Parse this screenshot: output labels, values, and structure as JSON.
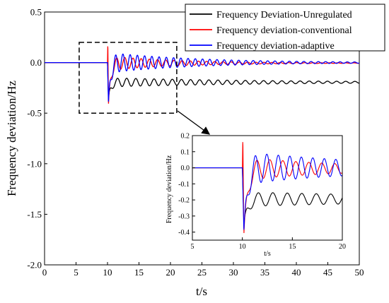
{
  "chart_data": [
    {
      "id": "main",
      "type": "line",
      "title": "",
      "xlabel": "t/s",
      "ylabel": "Frequency deviation/Hz",
      "xlim": [
        0,
        50
      ],
      "ylim": [
        -2.0,
        0.5
      ],
      "xticks": [
        0,
        5,
        10,
        15,
        20,
        25,
        30,
        35,
        40,
        45,
        50
      ],
      "yticks": [
        -2.0,
        -1.5,
        -1.0,
        -0.5,
        0.0,
        0.5
      ],
      "xtick_labels": [
        "0",
        "5",
        "10",
        "15",
        "20",
        "25",
        "30",
        "35",
        "40",
        "45",
        "50"
      ],
      "ytick_labels": [
        "-2.0",
        "-1.5",
        "-1.0",
        "-0.5",
        "0.0",
        "0.5"
      ],
      "grid": false,
      "legend_position": "top-right",
      "series": [
        {
          "name": "Frequency Deviation-Unregulated",
          "color": "#000000",
          "step_time": 10,
          "dip": -0.35,
          "steady": -0.195,
          "osc_amp": 0.045,
          "period": 1.45,
          "decay": 0.04
        },
        {
          "name": "Frequency deviation-conventional",
          "color": "#ff0000",
          "step_time": 10,
          "spike": 0.2,
          "dip": -0.42,
          "steady": -0.005,
          "osc_amp": 0.07,
          "period": 1.3,
          "decay": 0.09
        },
        {
          "name": "Frequency deviation-adaptive",
          "color": "#0000ff",
          "step_time": 10,
          "dip": -0.4,
          "steady": 0.0,
          "osc_amp": 0.1,
          "period": 1.15,
          "decay": 0.07
        }
      ],
      "zoom_box": {
        "x": [
          5.5,
          21
        ],
        "y": [
          -0.5,
          0.2
        ]
      }
    },
    {
      "id": "inset",
      "type": "line",
      "title": "",
      "xlabel": "t/s",
      "ylabel": "Frequency deviation/Hz",
      "xlim": [
        5,
        20
      ],
      "ylim": [
        -0.45,
        0.2
      ],
      "xticks": [
        5,
        10,
        15,
        20
      ],
      "yticks": [
        -0.4,
        -0.3,
        -0.2,
        -0.1,
        0.0,
        0.1,
        0.2
      ],
      "xtick_labels": [
        "5",
        "10",
        "15",
        "20"
      ],
      "ytick_labels": [
        "-0.4",
        "-0.3",
        "-0.2",
        "-0.1",
        "0.0",
        "0.1",
        "0.2"
      ],
      "grid": false
    }
  ]
}
